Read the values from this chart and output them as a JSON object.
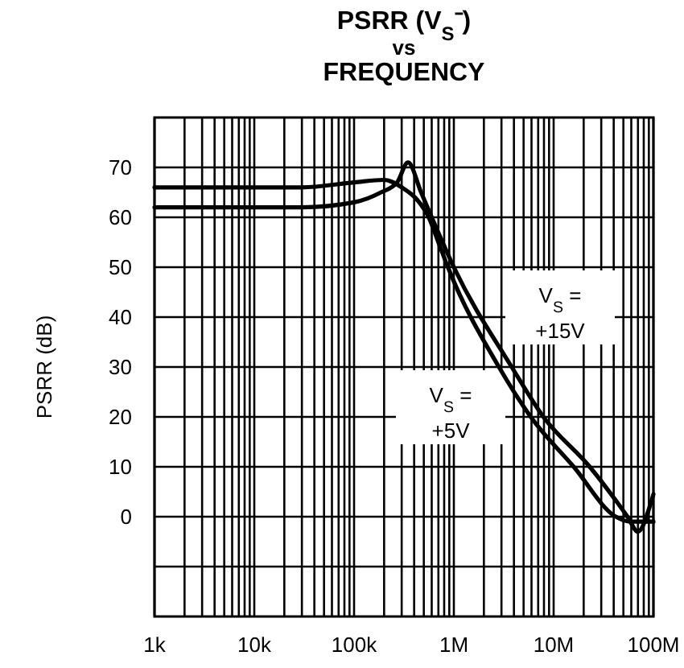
{
  "chart_data": {
    "type": "line",
    "title": "PSRR (V$_{S}$⁻)\nvs\nFREQUENCY",
    "ylabel": "PSRR (dB)",
    "series": [
      {
        "name": "V$_{S}$ = +5V",
        "color": "#000000",
        "x": [
          1000,
          10000,
          30000,
          100000,
          200000,
          300000,
          450000,
          560000,
          700000,
          872000,
          2830000,
          5900000,
          15900000,
          42000000,
          59000000,
          100000000
        ],
        "values": [
          66,
          66,
          66,
          67,
          67.5,
          66,
          63,
          60,
          55,
          50,
          30,
          20,
          10,
          0,
          -1,
          -1
        ]
      },
      {
        "name": "V$_{S}$ = +15V",
        "color": "#000000",
        "x": [
          1000,
          10000,
          30000,
          100000,
          186000,
          270000,
          347000,
          470000,
          600000,
          1000000,
          3800000,
          7900000,
          23000000,
          55000000,
          70000000,
          95000000,
          100000000
        ],
        "values": [
          62,
          62,
          62,
          63,
          65,
          67,
          71,
          65,
          60,
          50,
          30,
          20,
          10,
          0,
          -3,
          3,
          4.5
        ]
      }
    ],
    "xlim": [
      1000,
      100000000
    ],
    "log": "x",
    "ylim": [
      -20,
      80
    ],
    "xticks": [
      {
        "value": 1000,
        "label": "1k"
      },
      {
        "value": 2000,
        "label": null
      },
      {
        "value": 3000,
        "label": null
      },
      {
        "value": 4000,
        "label": null
      },
      {
        "value": 5000,
        "label": null
      },
      {
        "value": 6000,
        "label": null
      },
      {
        "value": 7000,
        "label": null
      },
      {
        "value": 8000,
        "label": null
      },
      {
        "value": 9000,
        "label": null
      },
      {
        "value": 10000,
        "label": "10k"
      },
      {
        "value": 20000,
        "label": null
      },
      {
        "value": 30000,
        "label": null
      },
      {
        "value": 40000,
        "label": null
      },
      {
        "value": 50000,
        "label": null
      },
      {
        "value": 60000,
        "label": null
      },
      {
        "value": 70000,
        "label": null
      },
      {
        "value": 80000,
        "label": null
      },
      {
        "value": 90000,
        "label": null
      },
      {
        "value": 100000,
        "label": "100k"
      },
      {
        "value": 200000,
        "label": null
      },
      {
        "value": 300000,
        "label": null
      },
      {
        "value": 400000,
        "label": null
      },
      {
        "value": 500000,
        "label": null
      },
      {
        "value": 600000,
        "label": null
      },
      {
        "value": 700000,
        "label": null
      },
      {
        "value": 800000,
        "label": null
      },
      {
        "value": 900000,
        "label": null
      },
      {
        "value": 1000000,
        "label": "1M"
      },
      {
        "value": 2000000,
        "label": null
      },
      {
        "value": 3000000,
        "label": null
      },
      {
        "value": 4000000,
        "label": null
      },
      {
        "value": 5000000,
        "label": null
      },
      {
        "value": 6000000,
        "label": null
      },
      {
        "value": 7000000,
        "label": null
      },
      {
        "value": 8000000,
        "label": null
      },
      {
        "value": 9000000,
        "label": null
      },
      {
        "value": 10000000,
        "label": "10M"
      },
      {
        "value": 20000000,
        "label": null
      },
      {
        "value": 30000000,
        "label": null
      },
      {
        "value": 40000000,
        "label": null
      },
      {
        "value": 50000000,
        "label": null
      },
      {
        "value": 60000000,
        "label": null
      },
      {
        "value": 70000000,
        "label": null
      },
      {
        "value": 80000000,
        "label": null
      },
      {
        "value": 90000000,
        "label": null
      },
      {
        "value": 100000000,
        "label": "100M"
      }
    ],
    "yticks": [
      {
        "value": -10,
        "label": null
      },
      0,
      10,
      20,
      30,
      40,
      50,
      60,
      70
    ],
    "grid": true,
    "line_style": "solid",
    "marker": "none"
  }
}
